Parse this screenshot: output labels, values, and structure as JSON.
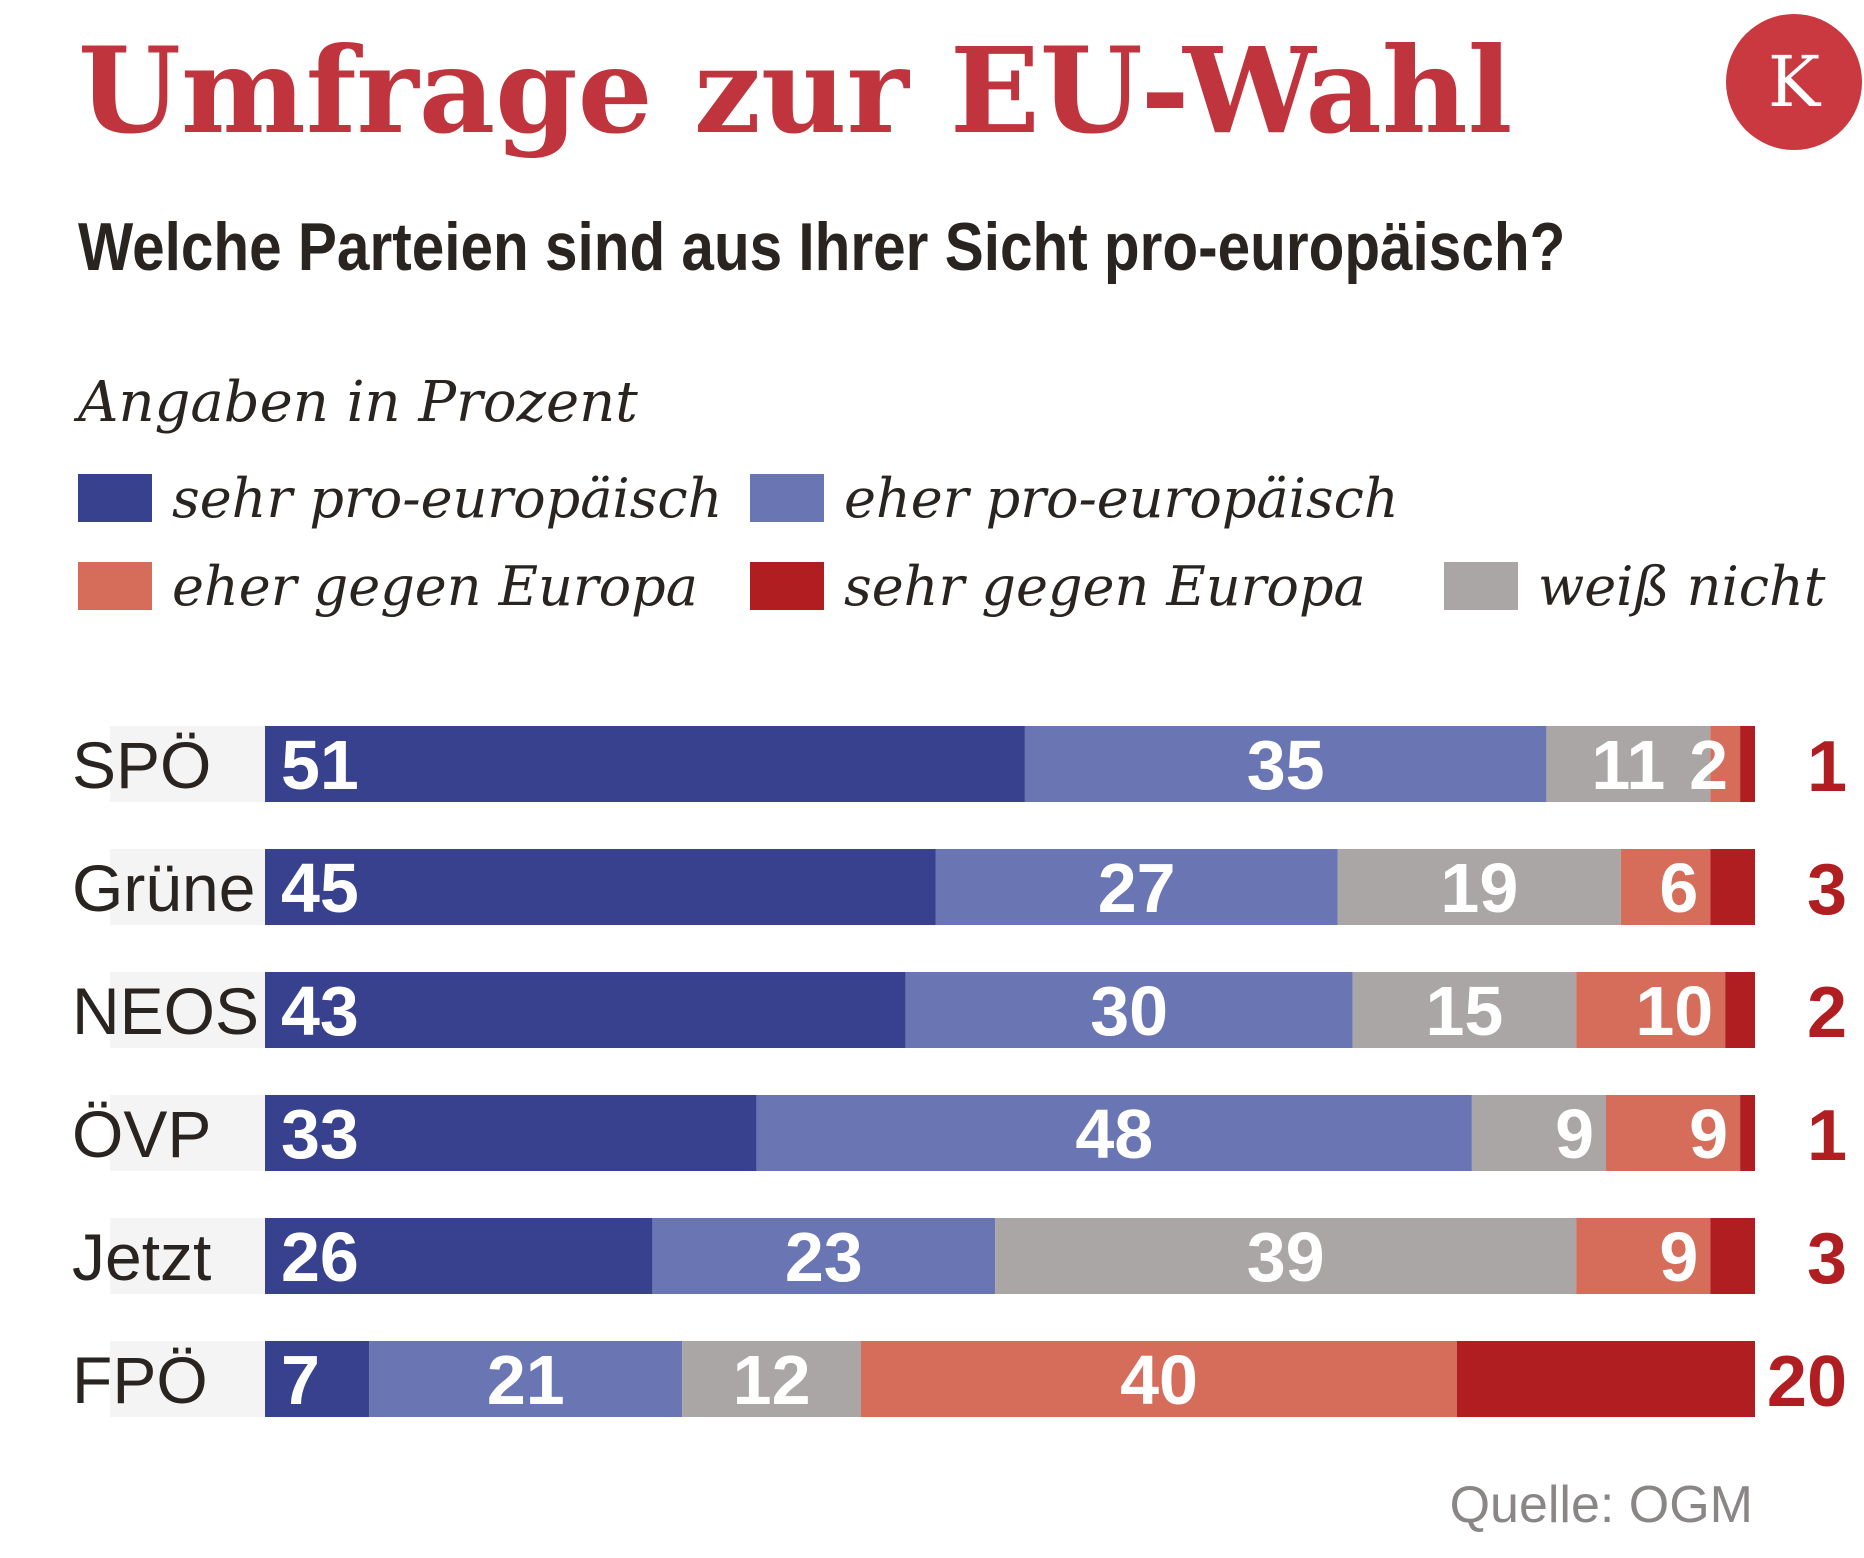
{
  "header": {
    "title": "Umfrage zur EU-Wahl",
    "subtitle": "Welche Parteien sind aus Ihrer Sicht pro-europäisch?",
    "logo_letter": "K",
    "unit_note": "Angaben in Prozent"
  },
  "source": "Quelle: OGM",
  "colors": {
    "title": "#c0353d",
    "logo": "#c9393f",
    "outside_value": "#b01e22",
    "bar_label": "#ffffff",
    "category_label": "#2a2420"
  },
  "chart_data": {
    "type": "bar",
    "orientation": "horizontal",
    "stacked": true,
    "title": "Welche Parteien sind aus Ihrer Sicht pro-europäisch?",
    "unit": "Angaben in Prozent",
    "legend_position": "top",
    "categories": [
      "SPÖ",
      "Grüne",
      "NEOS",
      "ÖVP",
      "Jetzt",
      "FPÖ"
    ],
    "series": [
      {
        "name": "sehr pro-europäisch",
        "color": "#37418e",
        "values": [
          51,
          45,
          43,
          33,
          26,
          7
        ],
        "inside_labels": [
          true,
          true,
          true,
          true,
          true,
          true
        ]
      },
      {
        "name": "eher pro-europäisch",
        "color": "#6a76b3",
        "values": [
          35,
          27,
          30,
          48,
          23,
          21
        ],
        "inside_labels": [
          true,
          true,
          true,
          true,
          true,
          true
        ]
      },
      {
        "name": "weiß nicht",
        "color": "#a9a6a5",
        "values": [
          11,
          19,
          15,
          9,
          39,
          12
        ],
        "inside_labels": [
          true,
          true,
          true,
          true,
          true,
          true
        ]
      },
      {
        "name": "eher gegen Europa",
        "color": "#d66d5a",
        "values": [
          2,
          6,
          10,
          9,
          9,
          40
        ],
        "inside_labels": [
          true,
          true,
          true,
          true,
          true,
          true
        ]
      },
      {
        "name": "sehr gegen Europa",
        "color": "#b01e22",
        "values": [
          1,
          3,
          2,
          1,
          3,
          20
        ],
        "inside_labels": [
          false,
          false,
          false,
          false,
          false,
          false
        ]
      }
    ],
    "legend_order": [
      "sehr pro-europäisch",
      "eher pro-europäisch",
      "eher gegen Europa",
      "sehr gegen Europa",
      "weiß nicht"
    ],
    "xlim": [
      0,
      100
    ]
  }
}
